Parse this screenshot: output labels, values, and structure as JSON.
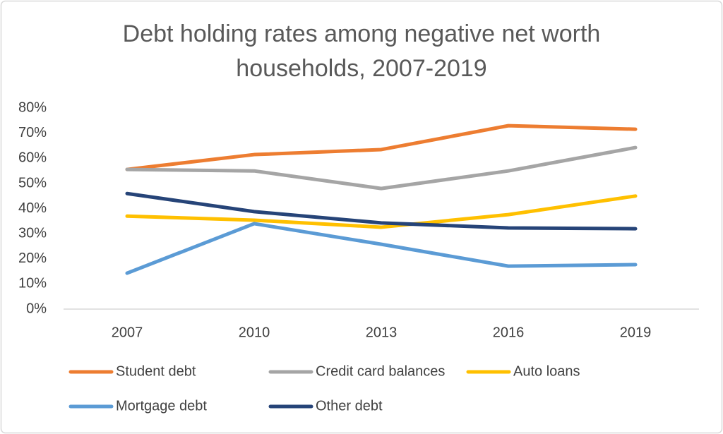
{
  "chart_data": {
    "type": "line",
    "title": "Debt holding rates among negative net worth households, 2007-2019",
    "categories": [
      "2007",
      "2010",
      "2013",
      "2016",
      "2019"
    ],
    "series": [
      {
        "name": "Student debt",
        "color": "#ed7d31",
        "values": [
          55.6,
          61.5,
          63.5,
          73,
          71.6
        ]
      },
      {
        "name": "Credit card balances",
        "color": "#a5a5a5",
        "values": [
          55.6,
          55,
          48,
          55,
          64.3
        ]
      },
      {
        "name": "Auto loans",
        "color": "#ffc000",
        "values": [
          37,
          35.4,
          32.6,
          37.6,
          45
        ]
      },
      {
        "name": "Mortgage debt",
        "color": "#5b9bd5",
        "values": [
          14.3,
          34,
          25.8,
          17.1,
          17.7
        ]
      },
      {
        "name": "Other debt",
        "color": "#264478",
        "values": [
          46,
          38.8,
          34.3,
          32.3,
          32
        ]
      }
    ],
    "ylim": [
      0,
      80
    ],
    "yticks": [
      {
        "value": 0,
        "label": "0%"
      },
      {
        "value": 10,
        "label": "10%"
      },
      {
        "value": 20,
        "label": "20%"
      },
      {
        "value": 30,
        "label": "30%"
      },
      {
        "value": 40,
        "label": "40%"
      },
      {
        "value": 50,
        "label": "50%"
      },
      {
        "value": 60,
        "label": "60%"
      },
      {
        "value": 70,
        "label": "70%"
      },
      {
        "value": 80,
        "label": "80%"
      }
    ],
    "grid": false,
    "legend": "bottom"
  }
}
